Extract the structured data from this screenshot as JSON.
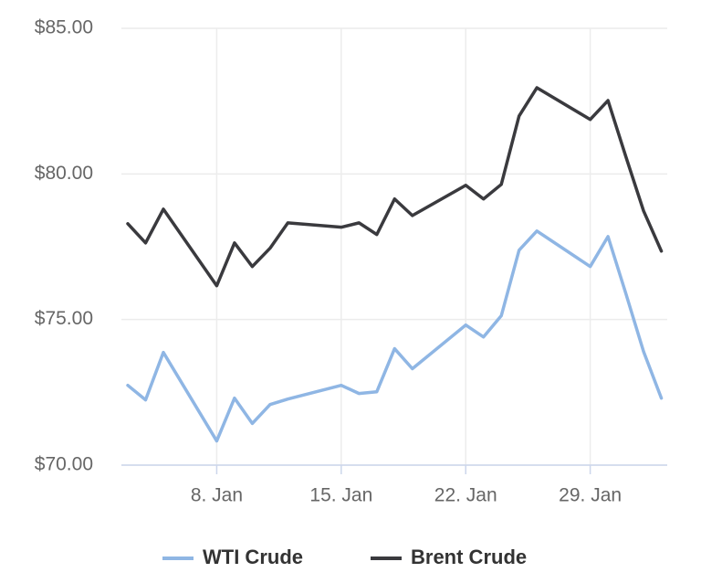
{
  "chart_data": {
    "type": "line",
    "x": [
      3,
      4,
      5,
      8,
      9,
      10,
      11,
      12,
      15,
      16,
      17,
      18,
      19,
      22,
      23,
      24,
      25,
      26,
      29,
      30,
      31,
      32,
      33
    ],
    "series": [
      {
        "name": "WTI Crude",
        "color": "#8fb6e4",
        "values": [
          72.74,
          72.24,
          73.87,
          70.83,
          72.3,
          71.43,
          72.08,
          72.27,
          72.74,
          72.46,
          72.52,
          74.0,
          73.31,
          74.81,
          74.4,
          75.13,
          77.38,
          78.04,
          76.82,
          77.85,
          75.9,
          73.9,
          72.3
        ]
      },
      {
        "name": "Brent Crude",
        "color": "#3a3a3e",
        "values": [
          78.29,
          77.63,
          78.79,
          76.16,
          77.63,
          76.82,
          77.45,
          78.32,
          78.17,
          78.32,
          77.92,
          79.14,
          78.57,
          79.61,
          79.14,
          79.64,
          81.99,
          82.96,
          81.87,
          82.52,
          80.6,
          78.73,
          77.35
        ]
      }
    ],
    "xlim": [
      2.64,
      33.33
    ],
    "xticks": [
      {
        "value": 8,
        "label": "8. Jan"
      },
      {
        "value": 15,
        "label": "15. Jan"
      },
      {
        "value": 22,
        "label": "22. Jan"
      },
      {
        "value": 29,
        "label": "29. Jan"
      }
    ],
    "ylim": [
      70,
      85
    ],
    "yticks": [
      {
        "value": 70,
        "label": "$70.00"
      },
      {
        "value": 75,
        "label": "$75.00"
      },
      {
        "value": 80,
        "label": "$80.00"
      },
      {
        "value": 85,
        "label": "$85.00"
      }
    ],
    "grid": true,
    "legend": "bottom"
  }
}
